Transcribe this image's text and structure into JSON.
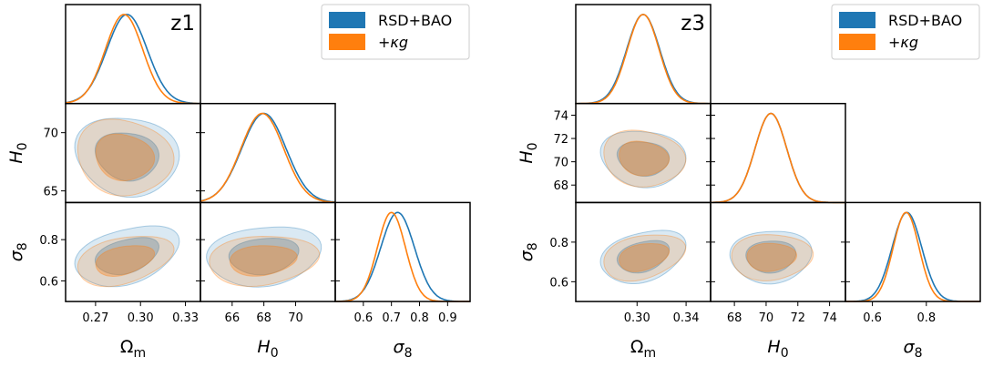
{
  "chart_data": [
    {
      "type": "triangle",
      "title": "z1",
      "params": [
        {
          "key": "Om",
          "label": "Ω",
          "sub": "m",
          "range": [
            0.25,
            0.34
          ],
          "ticks": [
            0.27,
            0.3,
            0.33
          ],
          "tick_labels": [
            "0.27",
            "0.30",
            "0.33"
          ]
        },
        {
          "key": "H0",
          "label": "H",
          "sub": "0",
          "range": [
            64.0,
            72.5
          ],
          "ticks": [
            66,
            68,
            70
          ],
          "tick_labels": [
            "66",
            "68",
            "70"
          ],
          "y_ticks": [
            65,
            70
          ],
          "y_tick_labels": [
            "65",
            "70"
          ]
        },
        {
          "key": "s8",
          "label": "σ",
          "sub": "8",
          "range": [
            0.5,
            0.98
          ],
          "ticks": [
            0.6,
            0.7,
            0.8,
            0.9
          ],
          "tick_labels": [
            "0.6",
            "0.7",
            "0.8",
            "0.9"
          ],
          "y_ticks": [
            0.6,
            0.8
          ],
          "y_tick_labels": [
            "0.6",
            "0.8"
          ]
        }
      ],
      "series": [
        {
          "name": "RSD+BAO",
          "color": "#1f77b4",
          "mean": {
            "Om": 0.291,
            "H0": 68.0,
            "s8": 0.722
          },
          "sigma": {
            "Om": 0.0135,
            "H0": 1.4,
            "s8": 0.06
          },
          "corr": {
            "Om_H0": -0.1,
            "Om_s8": 0.35,
            "H0_s8": 0.15
          }
        },
        {
          "name": "+κg",
          "color": "#ff7f0e",
          "mean": {
            "Om": 0.289,
            "H0": 67.9,
            "s8": 0.7
          },
          "sigma": {
            "Om": 0.0125,
            "H0": 1.35,
            "s8": 0.05
          },
          "corr": {
            "Om_H0": -0.1,
            "Om_s8": 0.35,
            "H0_s8": 0.15
          }
        }
      ],
      "legend_location": "upper right"
    },
    {
      "type": "triangle",
      "title": "z3",
      "params": [
        {
          "key": "Om",
          "label": "Ω",
          "sub": "m",
          "range": [
            0.25,
            0.36
          ],
          "ticks": [
            0.3,
            0.34
          ],
          "tick_labels": [
            "0.30",
            "0.34"
          ]
        },
        {
          "key": "H0",
          "label": "H",
          "sub": "0",
          "range": [
            66.5,
            75.0
          ],
          "ticks": [
            68,
            70,
            72,
            74
          ],
          "tick_labels": [
            "68",
            "70",
            "72",
            "74"
          ],
          "y_ticks": [
            68,
            70,
            72,
            74
          ],
          "y_tick_labels": [
            "68",
            "70",
            "72",
            "74"
          ]
        },
        {
          "key": "s8",
          "label": "σ",
          "sub": "8",
          "range": [
            0.5,
            1.0
          ],
          "ticks": [
            0.6,
            0.8
          ],
          "tick_labels": [
            "0.6",
            "0.8"
          ],
          "y_ticks": [
            0.6,
            0.8
          ],
          "y_tick_labels": [
            "0.6",
            "0.8"
          ]
        }
      ],
      "series": [
        {
          "name": "RSD+BAO",
          "color": "#1f77b4",
          "mean": {
            "Om": 0.305,
            "H0": 70.3,
            "s8": 0.728
          },
          "sigma": {
            "Om": 0.0135,
            "H0": 1.0,
            "s8": 0.055
          },
          "corr": {
            "Om_H0": -0.1,
            "Om_s8": 0.3,
            "H0_s8": 0.05
          }
        },
        {
          "name": "+κg",
          "color": "#ff7f0e",
          "mean": {
            "Om": 0.305,
            "H0": 70.3,
            "s8": 0.725
          },
          "sigma": {
            "Om": 0.013,
            "H0": 1.0,
            "s8": 0.048
          },
          "corr": {
            "Om_H0": -0.1,
            "Om_s8": 0.3,
            "H0_s8": 0.05
          }
        }
      ],
      "legend_location": "upper right"
    }
  ]
}
